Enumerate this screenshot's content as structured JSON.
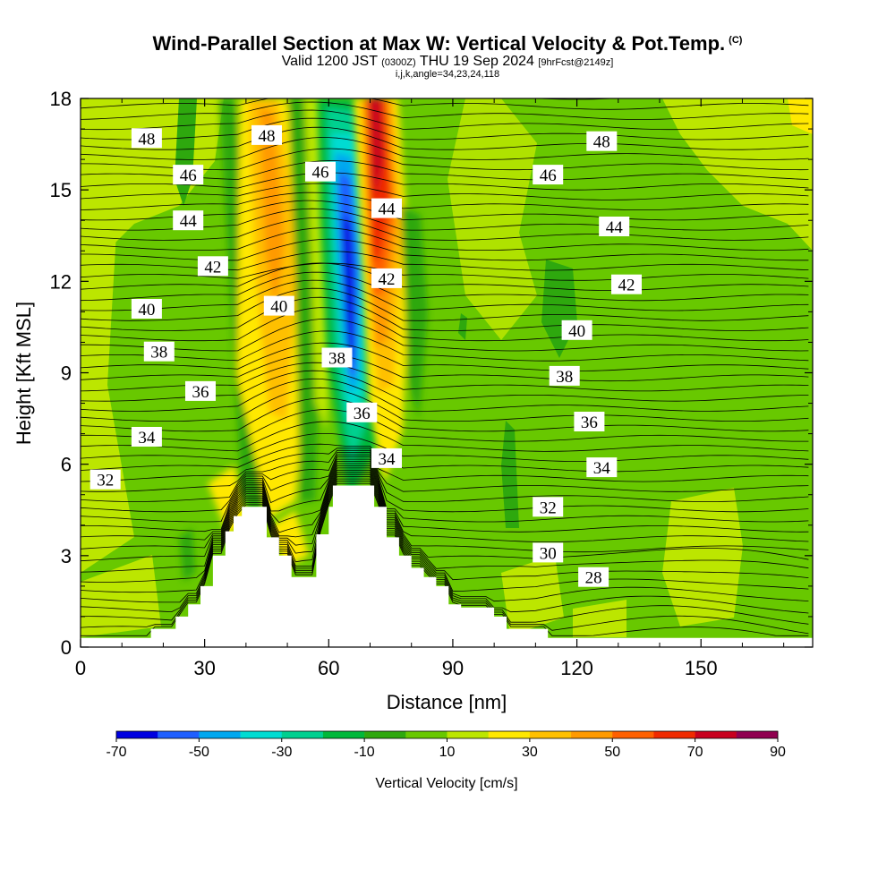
{
  "header": {
    "title": "Wind-Parallel Section at Max W: Vertical Velocity & Pot.Temp.",
    "copyright": "(C)",
    "valid_prefix": "Valid 1200 JST",
    "valid_utc": "(0300Z)",
    "valid_date": "THU 19 Sep 2024",
    "forecast": "[9hrFcst@2149z]",
    "subtitle": "i,j,k,angle=34,23,24,118"
  },
  "chart_data": {
    "type": "contour-section",
    "x_axis": {
      "label": "Distance [nm]",
      "range": [
        0,
        177
      ],
      "ticks": [
        0,
        30,
        60,
        90,
        120,
        150
      ]
    },
    "y_axis": {
      "label": "Height [Kft MSL]",
      "range": [
        0,
        18
      ],
      "ticks": [
        0,
        3,
        6,
        9,
        12,
        15,
        18
      ]
    },
    "colorbar": {
      "label": "Vertical Velocity [cm/s]",
      "tick_labels": [
        "-70",
        "-50",
        "-30",
        "-10",
        "10",
        "30",
        "50",
        "70",
        "90"
      ],
      "bins": [
        -70,
        -60,
        -50,
        -40,
        -30,
        -20,
        -10,
        0,
        10,
        20,
        30,
        40,
        50,
        60,
        70,
        80,
        90
      ],
      "colors": [
        "#0000e0",
        "#1f5fff",
        "#00a8f0",
        "#00dcd2",
        "#00d090",
        "#00b83a",
        "#2ea80e",
        "#68c800",
        "#bce600",
        "#ffe800",
        "#ffc000",
        "#ff9a00",
        "#ff6000",
        "#f02a00",
        "#c8001e",
        "#900050"
      ]
    },
    "terrain": [
      [
        0,
        0.3
      ],
      [
        17,
        0.3
      ],
      [
        17,
        0.6
      ],
      [
        23,
        0.6
      ],
      [
        23,
        1.0
      ],
      [
        26,
        1.0
      ],
      [
        26,
        1.4
      ],
      [
        29,
        1.4
      ],
      [
        29,
        2.0
      ],
      [
        32,
        2.0
      ],
      [
        32,
        3.0
      ],
      [
        35,
        3.0
      ],
      [
        35,
        3.8
      ],
      [
        37,
        3.8
      ],
      [
        37,
        4.3
      ],
      [
        39,
        4.3
      ],
      [
        39,
        4.6
      ],
      [
        45,
        4.6
      ],
      [
        45,
        3.6
      ],
      [
        48,
        3.6
      ],
      [
        48,
        3.0
      ],
      [
        51,
        3.0
      ],
      [
        51,
        2.3
      ],
      [
        57,
        2.3
      ],
      [
        57,
        3.7
      ],
      [
        60,
        3.7
      ],
      [
        60,
        4.6
      ],
      [
        61,
        4.6
      ],
      [
        61,
        5.3
      ],
      [
        71,
        5.3
      ],
      [
        71,
        4.6
      ],
      [
        74,
        4.6
      ],
      [
        74,
        3.6
      ],
      [
        77,
        3.6
      ],
      [
        77,
        3.0
      ],
      [
        80,
        3.0
      ],
      [
        80,
        2.6
      ],
      [
        83,
        2.6
      ],
      [
        83,
        2.3
      ],
      [
        86,
        2.3
      ],
      [
        86,
        2.0
      ],
      [
        89,
        2.0
      ],
      [
        89,
        1.4
      ],
      [
        92,
        1.4
      ],
      [
        92,
        1.3
      ],
      [
        100,
        1.3
      ],
      [
        100,
        1.0
      ],
      [
        103,
        1.0
      ],
      [
        103,
        0.6
      ],
      [
        113,
        0.6
      ],
      [
        113,
        0.3
      ],
      [
        177,
        0.3
      ]
    ],
    "theta_contours": [
      {
        "label": "48",
        "x": 16,
        "y": 16.7
      },
      {
        "label": "48",
        "x": 45,
        "y": 16.8
      },
      {
        "label": "48",
        "x": 126,
        "y": 16.6
      },
      {
        "label": "46",
        "x": 26,
        "y": 15.5
      },
      {
        "label": "46",
        "x": 58,
        "y": 15.6
      },
      {
        "label": "46",
        "x": 113,
        "y": 15.5
      },
      {
        "label": "44",
        "x": 26,
        "y": 14.0
      },
      {
        "label": "44",
        "x": 74,
        "y": 14.4
      },
      {
        "label": "44",
        "x": 129,
        "y": 13.8
      },
      {
        "label": "42",
        "x": 32,
        "y": 12.5
      },
      {
        "label": "42",
        "x": 74,
        "y": 12.1
      },
      {
        "label": "42",
        "x": 132,
        "y": 11.9
      },
      {
        "label": "40",
        "x": 16,
        "y": 11.1
      },
      {
        "label": "40",
        "x": 48,
        "y": 11.2
      },
      {
        "label": "40",
        "x": 120,
        "y": 10.4
      },
      {
        "label": "38",
        "x": 19,
        "y": 9.7
      },
      {
        "label": "38",
        "x": 62,
        "y": 9.5
      },
      {
        "label": "38",
        "x": 117,
        "y": 8.9
      },
      {
        "label": "36",
        "x": 29,
        "y": 8.4
      },
      {
        "label": "36",
        "x": 68,
        "y": 7.7
      },
      {
        "label": "36",
        "x": 123,
        "y": 7.4
      },
      {
        "label": "34",
        "x": 16,
        "y": 6.9
      },
      {
        "label": "34",
        "x": 74,
        "y": 6.2
      },
      {
        "label": "34",
        "x": 126,
        "y": 5.9
      },
      {
        "label": "32",
        "x": 6,
        "y": 5.5
      },
      {
        "label": "32",
        "x": 113,
        "y": 4.6
      },
      {
        "label": "30",
        "x": 113,
        "y": 3.1
      },
      {
        "label": "28",
        "x": 124,
        "y": 2.3
      }
    ]
  }
}
